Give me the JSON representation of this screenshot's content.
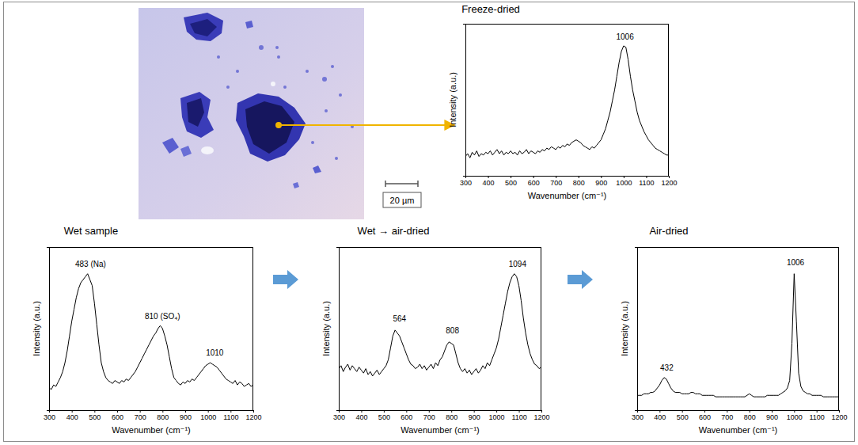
{
  "chart_data": [
    {
      "type": "line",
      "title": "Freeze-dried",
      "x_label": "Wavenumber (cm⁻¹)",
      "y_label": "Intensity (a.u.)",
      "x": [
        300,
        310,
        320,
        330,
        340,
        350,
        360,
        370,
        380,
        390,
        400,
        410,
        420,
        430,
        440,
        450,
        460,
        470,
        480,
        490,
        500,
        510,
        520,
        530,
        540,
        550,
        560,
        570,
        580,
        590,
        600,
        610,
        620,
        630,
        640,
        650,
        660,
        670,
        680,
        690,
        700,
        710,
        720,
        730,
        740,
        750,
        760,
        770,
        780,
        790,
        800,
        810,
        820,
        830,
        840,
        850,
        860,
        870,
        880,
        890,
        900,
        910,
        920,
        930,
        940,
        950,
        960,
        970,
        980,
        990,
        1000,
        1010,
        1020,
        1030,
        1040,
        1050,
        1060,
        1070,
        1080,
        1090,
        1100,
        1110,
        1120,
        1130,
        1140,
        1150,
        1160,
        1170,
        1180,
        1190,
        1200
      ],
      "values": [
        14,
        16,
        13,
        17,
        15,
        18,
        14,
        16,
        15,
        17,
        16,
        18,
        15,
        17,
        19,
        16,
        18,
        15,
        17,
        16,
        18,
        16,
        17,
        15,
        18,
        16,
        17,
        19,
        16,
        18,
        17,
        16,
        18,
        17,
        19,
        18,
        20,
        19,
        21,
        20,
        19,
        21,
        20,
        22,
        21,
        23,
        22,
        24,
        25,
        26,
        25,
        24,
        22,
        21,
        20,
        19,
        21,
        20,
        22,
        24,
        26,
        30,
        34,
        40,
        46,
        54,
        62,
        72,
        82,
        90,
        94,
        93,
        84,
        72,
        62,
        54,
        46,
        40,
        36,
        32,
        29,
        26,
        24,
        22,
        20,
        19,
        18,
        17,
        16,
        15,
        15
      ],
      "color": "#000000",
      "xlim": [
        300,
        1200
      ],
      "xticks": [
        300,
        400,
        500,
        600,
        700,
        800,
        900,
        1000,
        1100,
        1200
      ],
      "ylim": [
        0,
        110
      ],
      "tick_labels": "x",
      "grid": false,
      "annotations": [
        {
          "text": "1006",
          "x": 1006,
          "y": 97
        }
      ]
    },
    {
      "type": "line",
      "title": "Wet sample",
      "x_label": "Wavenumber (cm⁻¹)",
      "y_label": "Intensity (a.u.)",
      "x": [
        300,
        310,
        320,
        330,
        340,
        350,
        360,
        370,
        380,
        390,
        400,
        410,
        420,
        430,
        440,
        450,
        460,
        470,
        480,
        490,
        500,
        510,
        520,
        530,
        540,
        550,
        560,
        570,
        580,
        590,
        600,
        610,
        620,
        630,
        640,
        650,
        660,
        670,
        680,
        690,
        700,
        710,
        720,
        730,
        740,
        750,
        760,
        770,
        780,
        790,
        800,
        810,
        820,
        830,
        840,
        850,
        860,
        870,
        880,
        890,
        900,
        910,
        920,
        930,
        940,
        950,
        960,
        970,
        980,
        990,
        1000,
        1010,
        1020,
        1030,
        1040,
        1050,
        1060,
        1070,
        1080,
        1090,
        1100,
        1110,
        1120,
        1130,
        1140,
        1150,
        1160,
        1170,
        1180,
        1190,
        1200
      ],
      "values": [
        15,
        14,
        17,
        16,
        19,
        22,
        26,
        32,
        40,
        50,
        60,
        68,
        76,
        82,
        86,
        88,
        90,
        92,
        88,
        84,
        72,
        58,
        44,
        32,
        26,
        22,
        20,
        19,
        18,
        20,
        19,
        18,
        20,
        19,
        21,
        20,
        22,
        24,
        26,
        29,
        32,
        35,
        38,
        41,
        44,
        47,
        50,
        52,
        55,
        57,
        55,
        50,
        44,
        36,
        28,
        22,
        20,
        18,
        17,
        19,
        18,
        20,
        19,
        21,
        20,
        22,
        24,
        26,
        28,
        30,
        31,
        32,
        31,
        30,
        29,
        27,
        25,
        23,
        21,
        20,
        19,
        18,
        20,
        17,
        19,
        18,
        16,
        17,
        18,
        16,
        17
      ],
      "color": "#000000",
      "xlim": [
        300,
        1200
      ],
      "xticks": [
        300,
        400,
        500,
        600,
        700,
        800,
        900,
        1000,
        1100,
        1200
      ],
      "ylim": [
        0,
        110
      ],
      "tick_labels": "x",
      "grid": false,
      "annotations": [
        {
          "text": "483 (Na)",
          "x": 483,
          "y": 95
        },
        {
          "text": "810 (SO₄)",
          "x": 800,
          "y": 60
        },
        {
          "text": "1010",
          "x": 1030,
          "y": 35
        }
      ]
    },
    {
      "type": "line",
      "title": "Wet → air-dried",
      "x_label": "Wavenumber (cm⁻¹)",
      "y_label": "Intensity (a.u.)",
      "x": [
        300,
        310,
        320,
        330,
        340,
        350,
        360,
        370,
        380,
        390,
        400,
        410,
        420,
        430,
        440,
        450,
        460,
        470,
        480,
        490,
        500,
        510,
        520,
        530,
        540,
        550,
        560,
        570,
        580,
        590,
        600,
        610,
        620,
        630,
        640,
        650,
        660,
        670,
        680,
        690,
        700,
        710,
        720,
        730,
        740,
        750,
        760,
        770,
        780,
        790,
        800,
        810,
        820,
        830,
        840,
        850,
        860,
        870,
        880,
        890,
        900,
        910,
        920,
        930,
        940,
        950,
        960,
        970,
        980,
        990,
        1000,
        1010,
        1020,
        1030,
        1040,
        1050,
        1060,
        1070,
        1080,
        1090,
        1100,
        1110,
        1120,
        1130,
        1140,
        1150,
        1160,
        1170,
        1180,
        1190,
        1200
      ],
      "values": [
        28,
        30,
        26,
        29,
        31,
        27,
        30,
        28,
        26,
        29,
        27,
        25,
        28,
        24,
        26,
        23,
        25,
        27,
        24,
        26,
        28,
        30,
        34,
        42,
        50,
        54,
        52,
        50,
        46,
        42,
        38,
        34,
        31,
        30,
        28,
        29,
        31,
        28,
        30,
        27,
        29,
        31,
        28,
        32,
        30,
        34,
        36,
        40,
        44,
        46,
        45,
        44,
        38,
        32,
        28,
        26,
        28,
        25,
        27,
        24,
        26,
        28,
        25,
        27,
        30,
        28,
        32,
        30,
        34,
        38,
        42,
        48,
        56,
        64,
        72,
        80,
        86,
        90,
        92,
        90,
        84,
        74,
        62,
        52,
        44,
        38,
        34,
        31,
        30,
        28,
        29
      ],
      "color": "#000000",
      "xlim": [
        300,
        1200
      ],
      "xticks": [
        300,
        400,
        500,
        600,
        700,
        800,
        900,
        1000,
        1100,
        1200
      ],
      "ylim": [
        0,
        110
      ],
      "tick_labels": "x",
      "grid": false,
      "annotations": [
        {
          "text": "564",
          "x": 570,
          "y": 58
        },
        {
          "text": "808",
          "x": 805,
          "y": 50
        },
        {
          "text": "1094",
          "x": 1094,
          "y": 95
        }
      ]
    },
    {
      "type": "line",
      "title": "Air-dried",
      "x_label": "Wavenumber (cm⁻¹)",
      "y_label": "Intensity (a.u.)",
      "x": [
        300,
        310,
        320,
        330,
        340,
        350,
        360,
        370,
        380,
        390,
        400,
        410,
        420,
        430,
        440,
        450,
        460,
        470,
        480,
        490,
        500,
        510,
        520,
        530,
        540,
        550,
        560,
        570,
        580,
        590,
        600,
        610,
        620,
        630,
        640,
        650,
        660,
        670,
        680,
        690,
        700,
        710,
        720,
        730,
        740,
        750,
        760,
        770,
        780,
        790,
        800,
        810,
        820,
        830,
        840,
        850,
        860,
        870,
        880,
        890,
        900,
        910,
        920,
        930,
        940,
        950,
        960,
        970,
        980,
        990,
        1000,
        1010,
        1020,
        1030,
        1040,
        1050,
        1060,
        1070,
        1080,
        1090,
        1100,
        1110,
        1120,
        1130,
        1140,
        1150,
        1160,
        1170,
        1180,
        1190,
        1200
      ],
      "values": [
        10,
        10,
        10,
        11,
        11,
        11,
        12,
        12,
        13,
        15,
        17,
        20,
        22,
        21,
        18,
        15,
        13,
        12,
        12,
        12,
        11,
        11,
        11,
        11,
        12,
        12,
        11,
        11,
        11,
        10,
        10,
        10,
        10,
        10,
        10,
        9,
        9,
        9,
        9,
        9,
        9,
        9,
        9,
        9,
        9,
        9,
        9,
        9,
        9,
        10,
        11,
        10,
        9,
        9,
        9,
        9,
        9,
        9,
        10,
        10,
        10,
        10,
        10,
        10,
        11,
        12,
        13,
        15,
        20,
        45,
        92,
        60,
        25,
        16,
        13,
        12,
        11,
        11,
        10,
        10,
        10,
        10,
        10,
        9,
        9,
        9,
        9,
        9,
        9,
        9,
        9
      ],
      "color": "#000000",
      "xlim": [
        300,
        1200
      ],
      "xticks": [
        300,
        400,
        500,
        600,
        700,
        800,
        900,
        1000,
        1100,
        1200
      ],
      "ylim": [
        0,
        110
      ],
      "tick_labels": "x",
      "grid": false,
      "annotations": [
        {
          "text": "432",
          "x": 432,
          "y": 25
        },
        {
          "text": "1006",
          "x": 1006,
          "y": 96
        }
      ]
    }
  ],
  "micrograph": {
    "scale_bar_label": "20 µm"
  }
}
